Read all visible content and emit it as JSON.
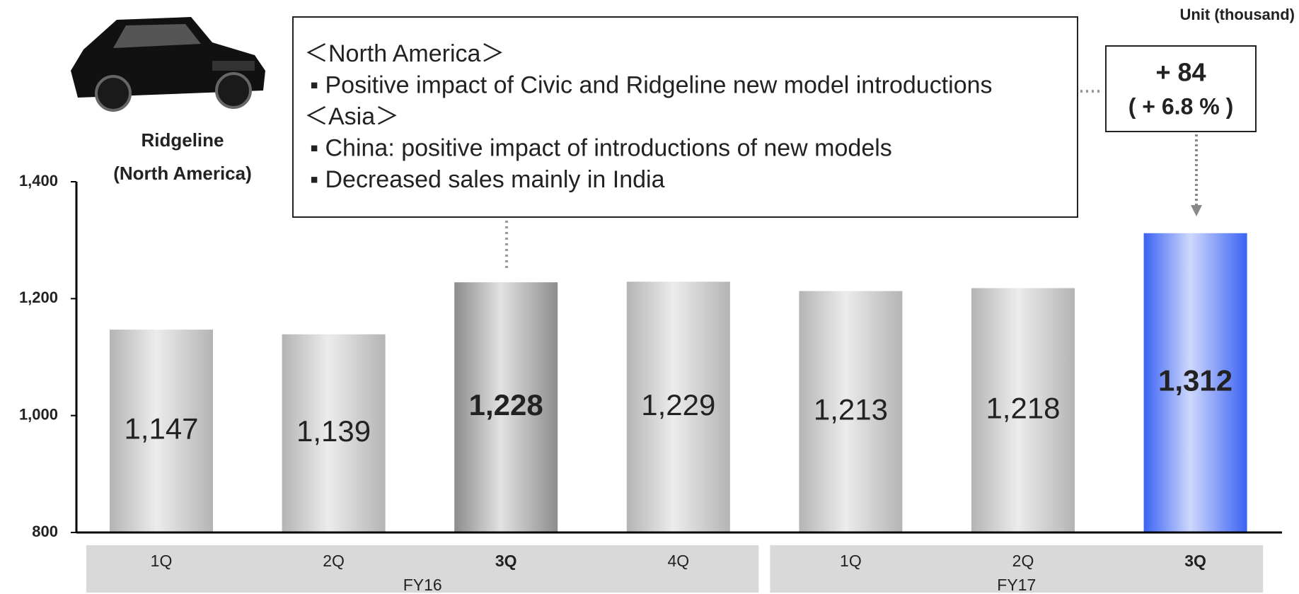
{
  "chart_data": {
    "type": "bar",
    "unit_label": "Unit (thousand)",
    "image_caption": [
      "Ridgeline",
      "(North America)"
    ],
    "categories": [
      "1Q",
      "2Q",
      "3Q",
      "4Q",
      "1Q",
      "2Q",
      "3Q"
    ],
    "groups": [
      {
        "name": "FY16",
        "size": 4
      },
      {
        "name": "FY17",
        "size": 3
      }
    ],
    "values": [
      1147,
      1139,
      1228,
      1229,
      1213,
      1218,
      1312
    ],
    "value_labels": [
      "1,147",
      "1,139",
      "1,228",
      "1,229",
      "1,213",
      "1,218",
      "1,312"
    ],
    "colors": [
      "#b4b4b4",
      "#b4b4b4",
      "#8c8c8c",
      "#b4b4b4",
      "#b4b4b4",
      "#b4b4b4",
      "#3b62f2"
    ],
    "highlight": [
      2,
      6
    ],
    "ylim": [
      800,
      1400
    ],
    "yticks": [
      {
        "value": 800,
        "label": "800"
      },
      {
        "value": 1000,
        "label": "1,000"
      },
      {
        "value": 1200,
        "label": "1,200"
      },
      {
        "value": 1400,
        "label": "1,400"
      }
    ],
    "annotations": {
      "box": [
        "＜North America＞",
        "▪ Positive impact of Civic and Ridgeline new model introductions",
        "＜Asia＞",
        "▪ China: positive impact of introductions of new models",
        "▪ Decreased sales mainly in India"
      ],
      "change": [
        "+ 84",
        "( + 6.8 % )"
      ]
    }
  }
}
